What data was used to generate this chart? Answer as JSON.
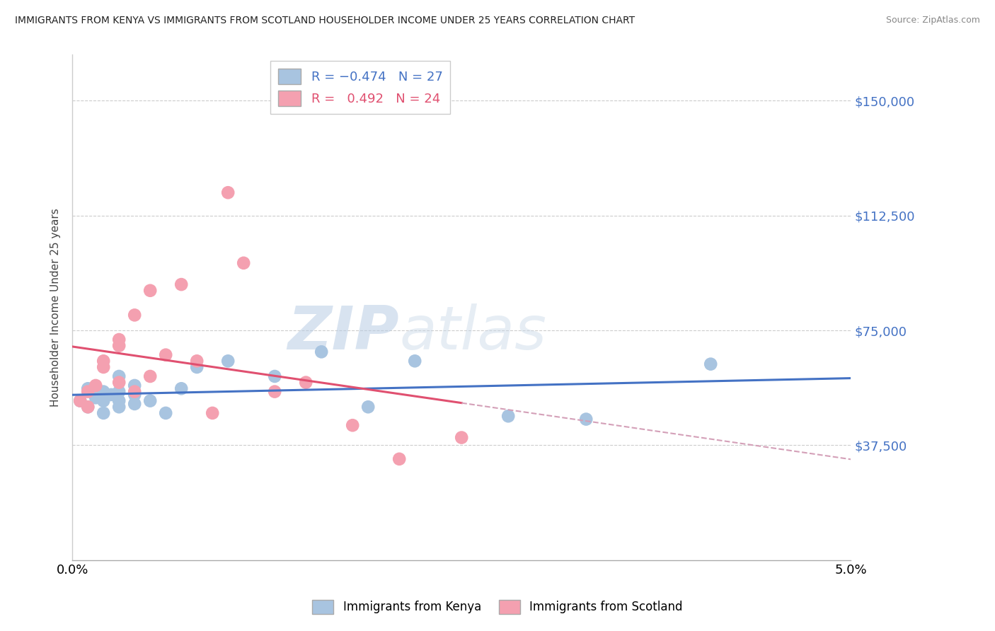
{
  "title": "IMMIGRANTS FROM KENYA VS IMMIGRANTS FROM SCOTLAND HOUSEHOLDER INCOME UNDER 25 YEARS CORRELATION CHART",
  "source": "Source: ZipAtlas.com",
  "ylabel": "Householder Income Under 25 years",
  "yticks": [
    0,
    37500,
    75000,
    112500,
    150000
  ],
  "ytick_labels": [
    "",
    "$37,500",
    "$75,000",
    "$112,500",
    "$150,000"
  ],
  "xlim": [
    0.0,
    0.05
  ],
  "ylim": [
    0,
    165000
  ],
  "kenya_R": -0.474,
  "kenya_N": 27,
  "scotland_R": 0.492,
  "scotland_N": 24,
  "kenya_color": "#a8c4e0",
  "scotland_color": "#f4a0b0",
  "kenya_line_color": "#4472c4",
  "scotland_line_color": "#e05070",
  "scotland_dashed_color": "#d4a0b8",
  "watermark_zip": "ZIP",
  "watermark_atlas": "atlas",
  "kenya_x": [
    0.0005,
    0.001,
    0.001,
    0.0015,
    0.002,
    0.002,
    0.002,
    0.0025,
    0.003,
    0.003,
    0.003,
    0.003,
    0.004,
    0.004,
    0.004,
    0.005,
    0.006,
    0.007,
    0.008,
    0.01,
    0.013,
    0.016,
    0.019,
    0.022,
    0.028,
    0.033,
    0.041
  ],
  "kenya_y": [
    52000,
    50000,
    56000,
    53000,
    55000,
    52000,
    48000,
    54000,
    60000,
    55000,
    52000,
    50000,
    57000,
    54000,
    51000,
    52000,
    48000,
    56000,
    63000,
    65000,
    60000,
    68000,
    50000,
    65000,
    47000,
    46000,
    64000
  ],
  "scotland_x": [
    0.0005,
    0.001,
    0.001,
    0.0015,
    0.002,
    0.002,
    0.003,
    0.003,
    0.003,
    0.004,
    0.004,
    0.005,
    0.005,
    0.006,
    0.007,
    0.008,
    0.009,
    0.01,
    0.011,
    0.013,
    0.015,
    0.018,
    0.021,
    0.025
  ],
  "scotland_y": [
    52000,
    55000,
    50000,
    57000,
    65000,
    63000,
    70000,
    72000,
    58000,
    80000,
    55000,
    88000,
    60000,
    67000,
    90000,
    65000,
    48000,
    120000,
    97000,
    55000,
    58000,
    44000,
    33000,
    40000
  ]
}
